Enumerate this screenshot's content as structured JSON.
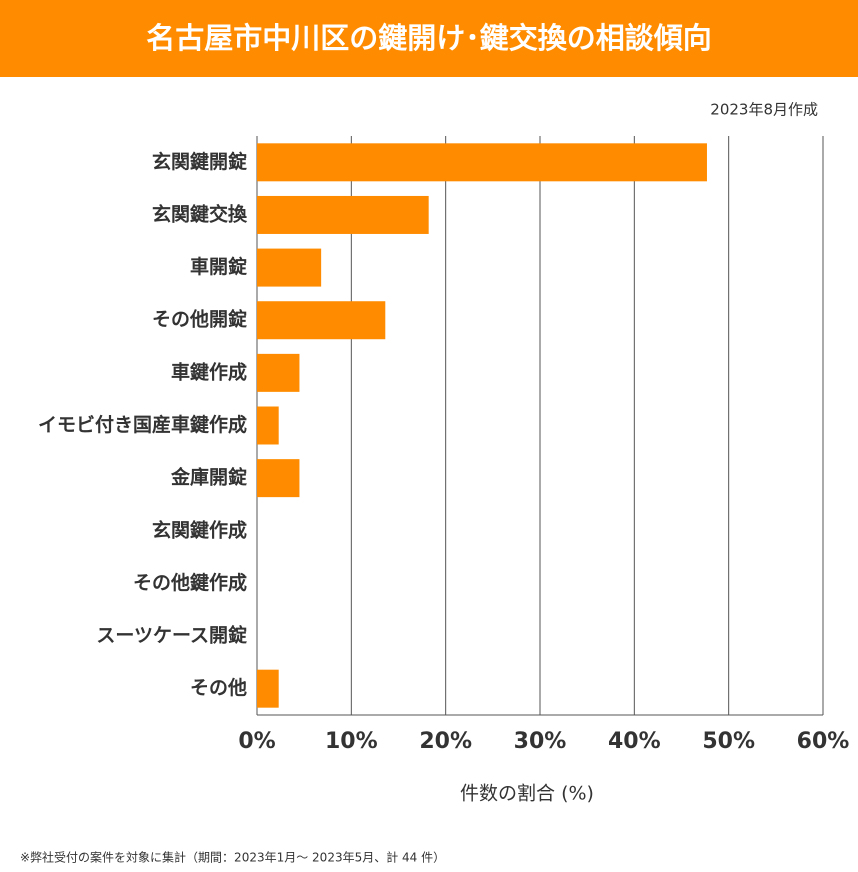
{
  "chart_data": {
    "type": "barh",
    "title": "名古屋市中川区の鍵開け･鍵交換の相談傾向",
    "subtitle": "2023年8月作成",
    "xlabel": "件数の割合 (%)",
    "footnote": "※弊社受付の案件を対象に集計（期間：2023年1月～ 2023年5月、計 44 件）",
    "categories": [
      "玄関鍵開錠",
      "玄関鍵交換",
      "車開錠",
      "その他開錠",
      "車鍵作成",
      "イモビ付き国産車鍵作成",
      "金庫開錠",
      "玄関鍵作成",
      "その他鍵作成",
      "スーツケース開錠",
      "その他"
    ],
    "values": [
      47.7,
      18.2,
      6.8,
      13.6,
      4.5,
      2.3,
      4.5,
      0,
      0,
      0,
      2.3
    ],
    "color": "#ff8c00",
    "xlim": [
      0,
      60
    ],
    "xticks": [
      {
        "value": 0,
        "label": "0%"
      },
      {
        "value": 10,
        "label": "10%"
      },
      {
        "value": 20,
        "label": "20%"
      },
      {
        "value": 30,
        "label": "30%"
      },
      {
        "value": 40,
        "label": "40%"
      },
      {
        "value": 50,
        "label": "50%"
      },
      {
        "value": 60,
        "label": "60%"
      }
    ],
    "grid": true
  }
}
